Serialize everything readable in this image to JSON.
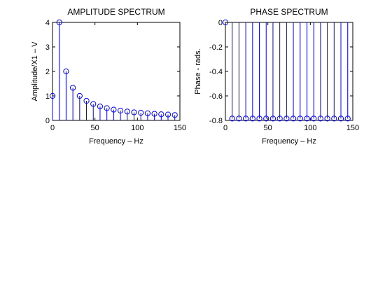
{
  "chart_data": [
    {
      "type": "stem",
      "title": "AMPLITUDE SPECTRUM",
      "xlabel": "Frequency – Hz",
      "ylabel": "Amplitude/X1 – V",
      "xlim": [
        0,
        150
      ],
      "ylim": [
        0,
        4
      ],
      "xticks": [
        0,
        50,
        100,
        150
      ],
      "yticks": [
        0,
        1,
        2,
        3,
        4
      ],
      "grid": false,
      "legend": "none",
      "color": "#0000ff",
      "marker": "circle",
      "x": [
        0,
        8,
        16,
        24,
        32,
        40,
        48,
        56,
        64,
        72,
        80,
        88,
        96,
        104,
        112,
        120,
        128,
        136,
        144
      ],
      "y": [
        1.0,
        4.0,
        2.0,
        1.33,
        1.0,
        0.8,
        0.67,
        0.57,
        0.5,
        0.44,
        0.4,
        0.36,
        0.33,
        0.31,
        0.29,
        0.27,
        0.25,
        0.24,
        0.22
      ]
    },
    {
      "type": "stem",
      "title": "PHASE SPECTRUM",
      "xlabel": "Frequency – Hz",
      "ylabel": "Phase - rads.",
      "xlim": [
        0,
        150
      ],
      "ylim": [
        -0.8,
        0
      ],
      "xticks": [
        0,
        50,
        100,
        150
      ],
      "yticks": [
        -0.8,
        -0.6,
        -0.4,
        -0.2,
        0
      ],
      "grid": false,
      "legend": "none",
      "color": "#0000ff",
      "marker": "circle",
      "x": [
        0,
        8,
        16,
        24,
        32,
        40,
        48,
        56,
        64,
        72,
        80,
        88,
        96,
        104,
        112,
        120,
        128,
        136,
        144
      ],
      "y": [
        0,
        -0.785,
        -0.785,
        -0.785,
        -0.785,
        -0.785,
        -0.785,
        -0.785,
        -0.785,
        -0.785,
        -0.785,
        -0.785,
        -0.785,
        -0.785,
        -0.785,
        -0.785,
        -0.785,
        -0.785,
        -0.785
      ]
    }
  ]
}
